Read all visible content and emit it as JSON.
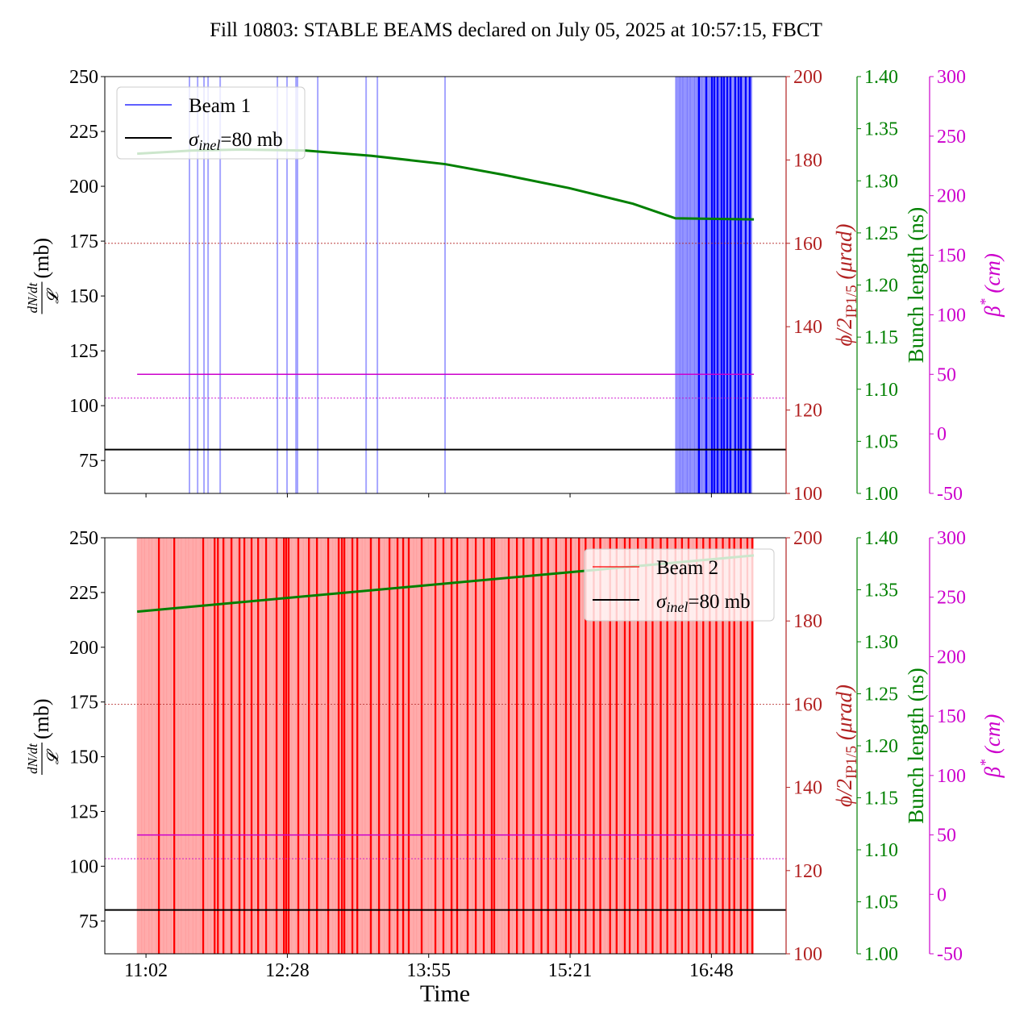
{
  "chart_data": {
    "type": "line",
    "title": "Fill 10803: STABLE BEAMS declared on July 05, 2025 at 10:57:15, FBCT",
    "xlabel": "Time",
    "x_units": "minutes since midnight",
    "xlim": [
      636.8,
      1053.7
    ],
    "xticks": [
      662,
      748.5,
      835,
      921.5,
      1008
    ],
    "xtick_labels": [
      "11:02",
      "12:28",
      "13:55",
      "15:21",
      "16:48"
    ],
    "colors": {
      "beam1": "#0000ff",
      "beam2": "#ff0000",
      "phi": "#b22222",
      "bunch": "#008000",
      "beta": "#cc00cc",
      "sigma": "#000000"
    },
    "axes": {
      "left": {
        "label_num": "dN/dt",
        "label_den": "𝓛",
        "label_unit": "(mb)",
        "ylim": [
          60,
          250
        ],
        "ticks": [
          75,
          100,
          125,
          150,
          175,
          200,
          225,
          250
        ]
      },
      "phi": {
        "label_main": "ϕ/2",
        "label_sub": "IP1/5",
        "label_unit": " (μrad)",
        "ylim": [
          100,
          200
        ],
        "ticks": [
          100,
          120,
          140,
          160,
          180,
          200
        ]
      },
      "bunch": {
        "label": "Bunch length (ns)",
        "ylim": [
          1.0,
          1.4
        ],
        "ticks": [
          "1.00",
          "1.05",
          "1.10",
          "1.15",
          "1.20",
          "1.25",
          "1.30",
          "1.35",
          "1.40"
        ]
      },
      "beta": {
        "label_main": "β",
        "label_sup": "*",
        "label_unit": " (cm)",
        "ylim": [
          -50,
          300
        ],
        "ticks": [
          -50,
          0,
          50,
          100,
          150,
          200,
          250,
          300
        ]
      }
    },
    "panels": [
      {
        "name": "beam1",
        "legend": {
          "position": "upper-left",
          "entries": [
            "Beam 1",
            "=80 mb"
          ],
          "sigma_symbol": "σ",
          "sigma_sub": "inel"
        },
        "beam_color": "#0000ff",
        "sigma_inel": 80,
        "phi_ref": 160,
        "beta_solid": 50,
        "beta_dotted": 30,
        "data_range": [
          656.6,
          1034
        ],
        "spikes_light": [
          688.6,
          693.6,
          697.5,
          700,
          707.4,
          742.4,
          748.3,
          753.8,
          754.7,
          767.1,
          796.7,
          803.6,
          845
        ],
        "dense_band": [
          986,
          1033
        ],
        "spikes_dark": [
          1000.4,
          1004.9,
          1008.3,
          1009.8,
          1011.8,
          1014.2,
          1015.7,
          1017.7,
          1019.6,
          1022.6,
          1024.6,
          1026.1,
          1029,
          1031.5
        ],
        "bunch_length": {
          "x": [
            656.6,
            690,
            720,
            760,
            800,
            845,
            880,
            921,
            960,
            986,
            1034
          ],
          "y": [
            1.326,
            1.329,
            1.33,
            1.329,
            1.324,
            1.316,
            1.306,
            1.293,
            1.278,
            1.264,
            1.263
          ]
        }
      },
      {
        "name": "beam2",
        "legend": {
          "position": "upper-right",
          "entries": [
            "Beam 2",
            "=80 mb"
          ],
          "sigma_symbol": "σ",
          "sigma_sub": "inel"
        },
        "beam_color": "#ff0000",
        "sigma_inel": 80,
        "phi_ref": 160,
        "beta_solid": 50,
        "beta_dotted": 30,
        "data_range": [
          656.6,
          1034
        ],
        "spikes_light": [],
        "dense_band": [
          656.6,
          1034
        ],
        "spikes_dark": [
          669.9,
          679.3,
          697,
          704,
          706,
          709.4,
          714.3,
          719.2,
          722.2,
          726.6,
          730.6,
          735.5,
          741.9,
          746.4,
          747.8,
          749.3,
          755.2,
          761.7,
          766.6,
          773.5,
          779.9,
          781.9,
          783.4,
          788.3,
          791.3,
          799.6,
          804.6,
          811,
          815.9,
          819.4,
          822.8,
          830.7,
          839.1,
          844,
          849,
          852.4,
          858.8,
          863.8,
          868.7,
          873.6,
          875.1,
          884,
          889,
          893,
          899,
          904,
          908,
          913,
          919,
          922,
          927,
          931,
          936,
          940,
          946,
          950,
          955,
          958,
          963,
          968,
          972,
          977,
          981,
          986,
          990,
          994,
          999,
          1003,
          1007,
          1011,
          1015,
          1019,
          1022,
          1026,
          1030,
          1033
        ],
        "bunch_length": {
          "x": [
            656.6,
            1034
          ],
          "y": [
            1.329,
            1.383
          ]
        }
      }
    ]
  }
}
